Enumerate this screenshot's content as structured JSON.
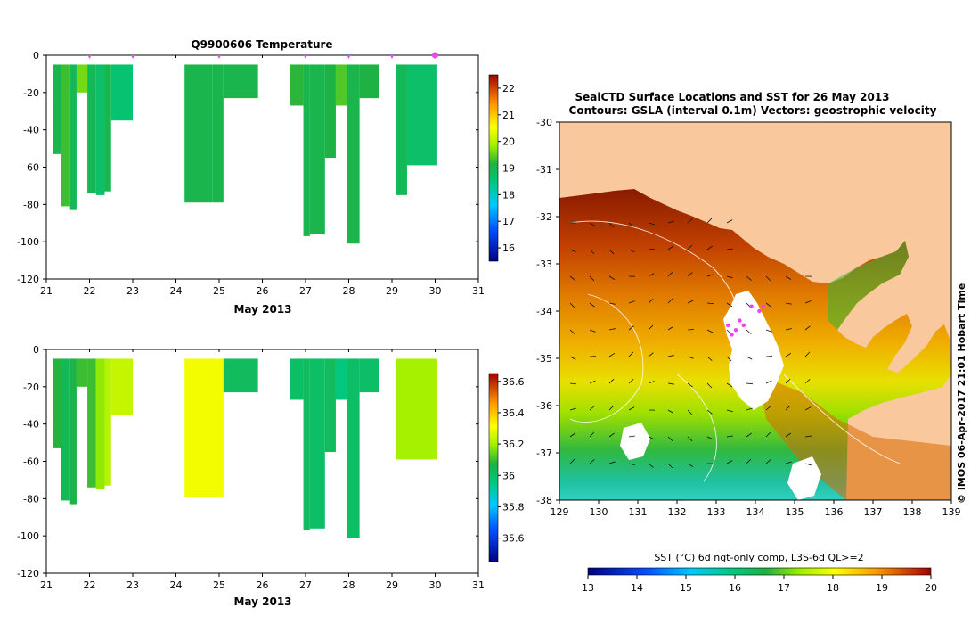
{
  "colors": {
    "land": "#f9c89d",
    "axis": "#000000",
    "marker": "#ee44ee"
  },
  "chart_data": [
    {
      "id": "temperature-profile",
      "type": "heatmap",
      "title": "Q9900606  Temperature",
      "xlabel": "May 2013",
      "ylabel": "",
      "xlim": [
        21,
        31
      ],
      "ylim": [
        -120,
        0
      ],
      "xticks": [
        "21",
        "22",
        "23",
        "24",
        "25",
        "26",
        "27",
        "28",
        "29",
        "30",
        "31"
      ],
      "yticks": [
        "0",
        "-20",
        "-40",
        "-60",
        "-80",
        "-100",
        "-120"
      ],
      "colorbar": {
        "min": 15.5,
        "max": 22.5,
        "ticks": [
          "16",
          "17",
          "18",
          "19",
          "20",
          "21",
          "22"
        ]
      },
      "surfacings": [
        22.0,
        23.0,
        25.0,
        27.0,
        28.0,
        29.0,
        30.0
      ],
      "profiles": [
        {
          "x0": 21.15,
          "x1": 21.35,
          "bottom": -53,
          "value": 19.0
        },
        {
          "x0": 21.35,
          "x1": 21.55,
          "bottom": -81,
          "value": 19.3
        },
        {
          "x0": 21.55,
          "x1": 21.7,
          "bottom": -83,
          "value": 18.9
        },
        {
          "x0": 21.7,
          "x1": 21.95,
          "bottom": -20,
          "value": 19.6
        },
        {
          "x0": 21.95,
          "x1": 22.15,
          "bottom": -74,
          "value": 18.9
        },
        {
          "x0": 22.15,
          "x1": 22.35,
          "bottom": -75,
          "value": 18.7
        },
        {
          "x0": 22.35,
          "x1": 22.5,
          "bottom": -73,
          "value": 19.0
        },
        {
          "x0": 22.5,
          "x1": 23.0,
          "bottom": -35,
          "value": 18.6
        },
        {
          "x0": 24.2,
          "x1": 24.85,
          "bottom": -79,
          "value": 19.0
        },
        {
          "x0": 24.85,
          "x1": 25.1,
          "bottom": -79,
          "value": 19.0
        },
        {
          "x0": 25.1,
          "x1": 25.9,
          "bottom": -23,
          "value": 19.0
        },
        {
          "x0": 26.65,
          "x1": 26.95,
          "bottom": -27,
          "value": 19.2
        },
        {
          "x0": 26.95,
          "x1": 27.1,
          "bottom": -97,
          "value": 19.0
        },
        {
          "x0": 27.1,
          "x1": 27.45,
          "bottom": -96,
          "value": 19.0
        },
        {
          "x0": 27.45,
          "x1": 27.7,
          "bottom": -55,
          "value": 19.1
        },
        {
          "x0": 27.7,
          "x1": 27.95,
          "bottom": -27,
          "value": 19.4
        },
        {
          "x0": 27.95,
          "x1": 28.25,
          "bottom": -101,
          "value": 19.0
        },
        {
          "x0": 28.25,
          "x1": 28.7,
          "bottom": -23,
          "value": 19.1
        },
        {
          "x0": 29.1,
          "x1": 29.35,
          "bottom": -75,
          "value": 18.9
        },
        {
          "x0": 29.35,
          "x1": 30.05,
          "bottom": -59,
          "value": 18.7
        }
      ]
    },
    {
      "id": "salinity-profile",
      "type": "heatmap",
      "title": "",
      "xlabel": "May 2013",
      "ylabel": "",
      "xlim": [
        21,
        31
      ],
      "ylim": [
        -120,
        0
      ],
      "xticks": [
        "21",
        "22",
        "23",
        "24",
        "25",
        "26",
        "27",
        "28",
        "29",
        "30",
        "31"
      ],
      "yticks": [
        "0",
        "-20",
        "-40",
        "-60",
        "-80",
        "-100",
        "-120"
      ],
      "colorbar": {
        "min": 35.45,
        "max": 36.65,
        "ticks": [
          "35.6",
          "35.8",
          "36",
          "36.2",
          "36.4",
          "36.6"
        ]
      },
      "profiles": [
        {
          "x0": 21.15,
          "x1": 21.35,
          "bottom": -53,
          "value": 36.08
        },
        {
          "x0": 21.35,
          "x1": 21.55,
          "bottom": -81,
          "value": 36.03
        },
        {
          "x0": 21.55,
          "x1": 21.7,
          "bottom": -83,
          "value": 36.06
        },
        {
          "x0": 21.7,
          "x1": 21.95,
          "bottom": -20,
          "value": 36.1
        },
        {
          "x0": 21.95,
          "x1": 22.15,
          "bottom": -74,
          "value": 36.1
        },
        {
          "x0": 22.15,
          "x1": 22.35,
          "bottom": -75,
          "value": 36.18
        },
        {
          "x0": 22.35,
          "x1": 22.5,
          "bottom": -73,
          "value": 36.22
        },
        {
          "x0": 22.5,
          "x1": 23.0,
          "bottom": -35,
          "value": 36.24
        },
        {
          "x0": 24.2,
          "x1": 25.1,
          "bottom": -79,
          "value": 36.3
        },
        {
          "x0": 25.1,
          "x1": 25.9,
          "bottom": -23,
          "value": 36.02
        },
        {
          "x0": 26.65,
          "x1": 26.95,
          "bottom": -27,
          "value": 36.0
        },
        {
          "x0": 26.95,
          "x1": 27.1,
          "bottom": -97,
          "value": 36.02
        },
        {
          "x0": 27.1,
          "x1": 27.45,
          "bottom": -96,
          "value": 36.0
        },
        {
          "x0": 27.45,
          "x1": 27.7,
          "bottom": -55,
          "value": 36.02
        },
        {
          "x0": 27.7,
          "x1": 27.95,
          "bottom": -27,
          "value": 35.96
        },
        {
          "x0": 27.95,
          "x1": 28.25,
          "bottom": -101,
          "value": 36.0
        },
        {
          "x0": 28.25,
          "x1": 28.7,
          "bottom": -23,
          "value": 36.0
        },
        {
          "x0": 29.1,
          "x1": 30.05,
          "bottom": -59,
          "value": 36.2
        }
      ]
    },
    {
      "id": "sst-map",
      "type": "heatmap",
      "title": "SealCTD Surface Locations and SST for 26 May 2013",
      "subtitle": "Contours: GSLA (interval 0.1m)  Vectors: geostrophic velocity",
      "xlabel": "",
      "ylabel": "",
      "xlim": [
        129,
        139
      ],
      "ylim": [
        -38,
        -30
      ],
      "xticks": [
        "129",
        "130",
        "131",
        "132",
        "133",
        "134",
        "135",
        "136",
        "137",
        "138",
        "139"
      ],
      "yticks": [
        "-30",
        "-31",
        "-32",
        "-33",
        "-34",
        "-35",
        "-36",
        "-37",
        "-38"
      ],
      "colorbar": {
        "label": "SST (°C) 6d ngt-only comp, L3S-6d QL>=2",
        "min": 13,
        "max": 20,
        "ticks": [
          "13",
          "14",
          "15",
          "16",
          "17",
          "18",
          "19",
          "20"
        ]
      },
      "credit": "© IMOS 06-Apr-2017 21:01 Hobart Time",
      "seal_positions": [
        [
          133.9,
          -33.9
        ],
        [
          133.6,
          -34.2
        ],
        [
          133.5,
          -34.4
        ],
        [
          133.4,
          -34.5
        ],
        [
          133.7,
          -34.3
        ],
        [
          134.2,
          -33.9
        ],
        [
          134.1,
          -34.0
        ],
        [
          133.3,
          -34.3
        ]
      ]
    }
  ]
}
